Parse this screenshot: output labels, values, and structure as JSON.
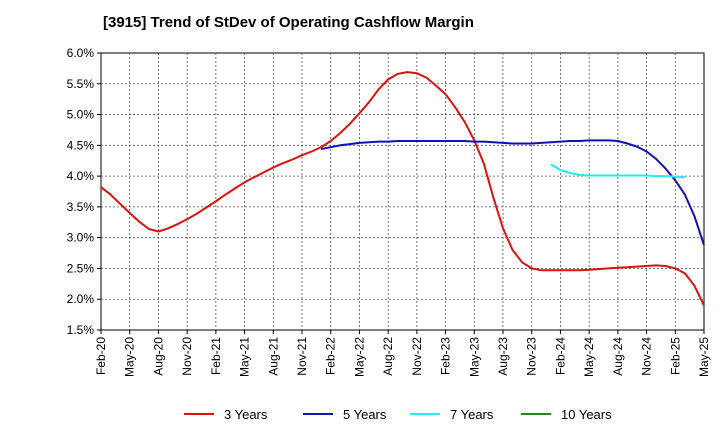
{
  "chart_data": {
    "type": "line",
    "title": "[3915]  Trend of StDev of Operating Cashflow Margin",
    "xlabel": "",
    "ylabel": "",
    "ylim": [
      1.5,
      6.0
    ],
    "yticks": [
      "6.0%",
      "5.5%",
      "5.0%",
      "4.5%",
      "4.0%",
      "3.5%",
      "3.0%",
      "2.5%",
      "2.0%",
      "1.5%"
    ],
    "ytick_values": [
      6.0,
      5.5,
      5.0,
      4.5,
      4.0,
      3.5,
      3.0,
      2.5,
      2.0,
      1.5
    ],
    "xticks": [
      "Feb-20",
      "May-20",
      "Aug-20",
      "Nov-20",
      "Feb-21",
      "May-21",
      "Aug-21",
      "Nov-21",
      "Feb-22",
      "May-22",
      "Aug-22",
      "Nov-22",
      "Feb-23",
      "May-23",
      "Aug-23",
      "Nov-23",
      "Feb-24",
      "May-24",
      "Aug-24",
      "Nov-24",
      "Feb-25",
      "May-25"
    ],
    "x_unit": "months since Feb-20",
    "grid": true,
    "legend_position": "bottom",
    "series": [
      {
        "name": "3 Years",
        "color": "#dd1111",
        "x": [
          0,
          1,
          2,
          3,
          4,
          5,
          6,
          7,
          8,
          9,
          10,
          11,
          12,
          13,
          14,
          15,
          16,
          17,
          18,
          19,
          20,
          21,
          22,
          23,
          24,
          25,
          26,
          27,
          28,
          29,
          30,
          31,
          32,
          33,
          34,
          35,
          36,
          37,
          38,
          39,
          40,
          41,
          42,
          43,
          44,
          45,
          46,
          47,
          48,
          49,
          50,
          51,
          52,
          53,
          54,
          55,
          56,
          57,
          58,
          59,
          60
        ],
        "values": [
          3.82,
          3.7,
          3.55,
          3.4,
          3.26,
          3.14,
          3.1,
          3.15,
          3.22,
          3.3,
          3.39,
          3.49,
          3.59,
          3.7,
          3.8,
          3.9,
          3.98,
          4.06,
          4.14,
          4.21,
          4.27,
          4.34,
          4.4,
          4.47,
          4.57,
          4.7,
          4.85,
          5.02,
          5.2,
          5.41,
          5.57,
          5.66,
          5.69,
          5.67,
          5.6,
          5.47,
          5.33,
          5.12,
          4.88,
          4.58,
          4.2,
          3.65,
          3.15,
          2.8,
          2.6,
          2.5,
          2.47,
          2.47,
          2.47,
          2.47,
          2.47,
          2.48,
          2.49,
          2.5,
          2.51,
          2.52,
          2.53,
          2.54,
          2.55,
          2.54,
          2.5
        ]
      },
      {
        "name": "5 Years",
        "color": "#1111bb",
        "x": [
          23,
          24,
          25,
          26,
          27,
          28,
          29,
          30,
          31,
          32,
          33,
          34,
          35,
          36,
          37,
          38,
          39,
          40,
          41,
          42,
          43,
          44,
          45,
          46,
          47,
          48,
          49,
          50,
          51,
          52,
          53,
          54,
          55,
          56,
          57,
          58,
          59,
          60
        ],
        "values": [
          4.44,
          4.47,
          4.5,
          4.52,
          4.54,
          4.55,
          4.56,
          4.56,
          4.57,
          4.57,
          4.57,
          4.57,
          4.57,
          4.57,
          4.57,
          4.57,
          4.56,
          4.56,
          4.55,
          4.54,
          4.53,
          4.53,
          4.53,
          4.54,
          4.55,
          4.56,
          4.57,
          4.57,
          4.58,
          4.58,
          4.58,
          4.57,
          4.53,
          4.48,
          4.4,
          4.28,
          4.12,
          3.93
        ]
      },
      {
        "name": "7 Years",
        "color": "#22eeee",
        "x": [
          47,
          48,
          49,
          50,
          51,
          52,
          53,
          54,
          55,
          56,
          57,
          58,
          59,
          60
        ],
        "values": [
          4.19,
          4.1,
          4.05,
          4.02,
          4.01,
          4.01,
          4.01,
          4.01,
          4.01,
          4.01,
          4.01,
          4.0,
          4.0,
          3.99
        ]
      },
      {
        "name": "10 Years",
        "color": "#228822",
        "x": [],
        "values": []
      }
    ],
    "tail_points": {
      "3 Years": [
        [
          61,
          2.42
        ],
        [
          62,
          2.22
        ],
        [
          63,
          1.9
        ]
      ],
      "5 Years": [
        [
          61,
          3.7
        ],
        [
          62,
          3.35
        ],
        [
          63,
          2.88
        ]
      ],
      "7 Years": [
        [
          61,
          3.98
        ]
      ]
    }
  }
}
